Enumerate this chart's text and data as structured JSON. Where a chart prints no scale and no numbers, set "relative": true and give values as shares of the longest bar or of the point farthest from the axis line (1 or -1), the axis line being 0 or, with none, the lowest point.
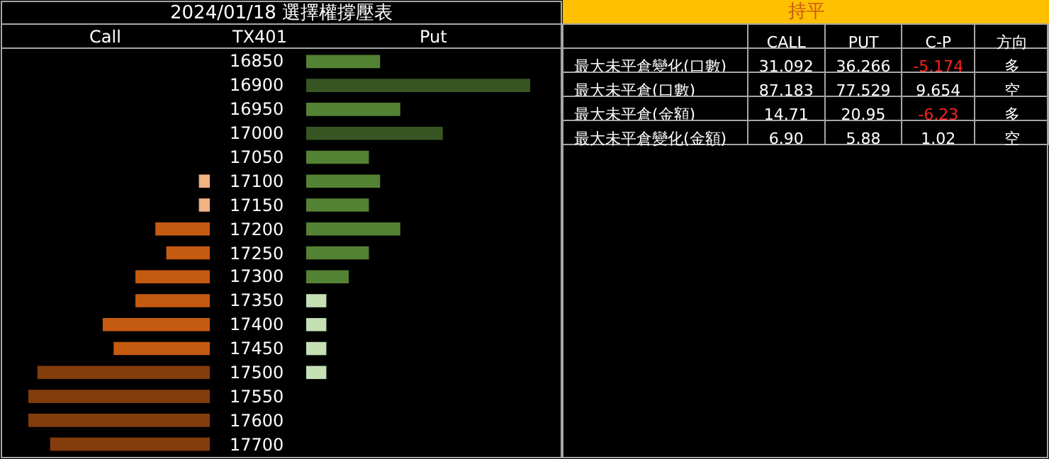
{
  "chart_data": [
    {
      "type": "bar",
      "orientation": "horizontal",
      "relative": true,
      "title": "2024/01/18 選擇權撐壓表",
      "tick_labels": false,
      "categories": [
        "16850",
        "16900",
        "16950",
        "17000",
        "17050",
        "17100",
        "17150",
        "17200",
        "17250",
        "17300",
        "17350",
        "17400",
        "17450",
        "17500",
        "17550",
        "17600",
        "17700"
      ],
      "series": [
        {
          "name": "Call",
          "values": [
            null,
            null,
            null,
            null,
            null,
            0.06,
            0.06,
            0.3,
            0.24,
            0.41,
            0.41,
            0.59,
            0.53,
            0.95,
            1,
            1,
            0.88
          ],
          "colors": [
            null,
            null,
            null,
            null,
            null,
            "#f4b183",
            "#f4b183",
            "#c55a11",
            "#c55a11",
            "#c55a11",
            "#c55a11",
            "#c55a11",
            "#c55a11",
            "#843c0c",
            "#843c0c",
            "#843c0c",
            "#843c0c"
          ]
        }
      ]
    },
    {
      "type": "bar",
      "orientation": "horizontal",
      "relative": true,
      "ylabel": "TX401",
      "tick_labels": "y",
      "categories": [
        "16850",
        "16900",
        "16950",
        "17000",
        "17050",
        "17100",
        "17150",
        "17200",
        "17250",
        "17300",
        "17350",
        "17400",
        "17450",
        "17500",
        "17550",
        "17600",
        "17700"
      ],
      "series": [
        {
          "name": "Put",
          "values": [
            0.33,
            1,
            0.42,
            0.61,
            0.28,
            0.33,
            0.28,
            0.42,
            0.28,
            0.19,
            0.09,
            0.09,
            0.09,
            0.09,
            null,
            null,
            null
          ],
          "colors": [
            "#548235",
            "#375623",
            "#548235",
            "#375623",
            "#548235",
            "#548235",
            "#548235",
            "#548235",
            "#548235",
            "#548235",
            "#c5e0b4",
            "#c5e0b4",
            "#c5e0b4",
            "#c5e0b4",
            null,
            null,
            null
          ]
        }
      ]
    },
    {
      "type": "other",
      "title": "持平",
      "categories": [
        "CALL",
        "PUT",
        "C-P",
        "方向"
      ],
      "y_categories": [
        "最大未平倉變化(口數)",
        "最大未平倉(口數)",
        "最大未平倉(金額)",
        "最大未平倉變化(金額)"
      ],
      "cell_labels": [
        [
          "31,092",
          "36,266",
          "-5,174",
          "多"
        ],
        [
          "87,183",
          "77,529",
          "9,654",
          "空"
        ],
        [
          "14.71",
          "20.95",
          "-6.23",
          "多"
        ],
        [
          "6.90",
          "5.88",
          "1.02",
          "空"
        ]
      ]
    }
  ]
}
